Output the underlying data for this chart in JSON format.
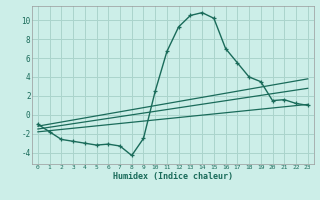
{
  "xlabel": "Humidex (Indice chaleur)",
  "background_color": "#cceee8",
  "grid_color": "#aad4cc",
  "line_color": "#1a6b5a",
  "xlim": [
    -0.5,
    23.5
  ],
  "ylim": [
    -5.2,
    11.5
  ],
  "xticks": [
    0,
    1,
    2,
    3,
    4,
    5,
    6,
    7,
    8,
    9,
    10,
    11,
    12,
    13,
    14,
    15,
    16,
    17,
    18,
    19,
    20,
    21,
    22,
    23
  ],
  "yticks": [
    -4,
    -2,
    0,
    2,
    4,
    6,
    8,
    10
  ],
  "curve1_x": [
    0,
    1,
    2,
    3,
    4,
    5,
    6,
    7,
    8,
    9,
    10,
    11,
    12,
    13,
    14,
    15,
    16,
    17,
    18,
    19,
    20,
    21,
    22,
    23
  ],
  "curve1_y": [
    -1.0,
    -1.8,
    -2.6,
    -2.8,
    -3.0,
    -3.2,
    -3.1,
    -3.3,
    -4.3,
    -2.5,
    2.5,
    6.7,
    9.3,
    10.5,
    10.8,
    10.2,
    7.0,
    5.5,
    4.0,
    3.5,
    1.5,
    1.6,
    1.2,
    1.0
  ],
  "line2_x": [
    0,
    23
  ],
  "line2_y": [
    -1.2,
    3.8
  ],
  "line3_x": [
    0,
    23
  ],
  "line3_y": [
    -1.5,
    2.8
  ],
  "line4_x": [
    0,
    23
  ],
  "line4_y": [
    -1.8,
    1.1
  ]
}
